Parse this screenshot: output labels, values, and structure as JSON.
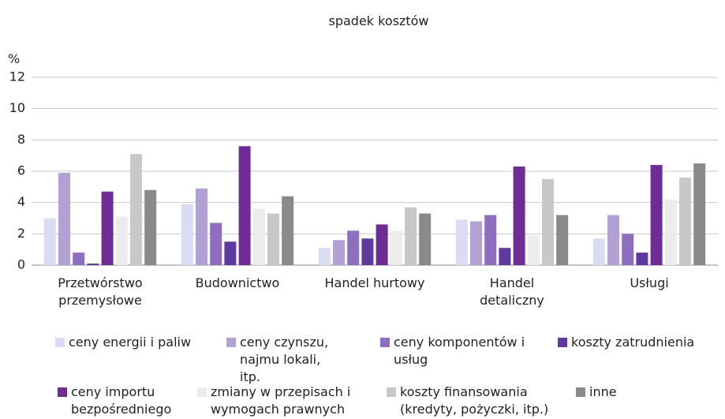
{
  "chart_data": {
    "type": "bar",
    "title": "spadek kosztów",
    "y_label": "%",
    "categories": [
      "Przetwórstwo przemysłowe",
      "Budownictwo",
      "Handel hurtowy",
      "Handel detaliczny",
      "Usługi"
    ],
    "series": [
      {
        "name": "ceny energii i paliw",
        "color": "#d9dcf2",
        "values": [
          3.0,
          3.9,
          1.1,
          2.9,
          1.7
        ]
      },
      {
        "name": "ceny czynszu, najmu lokali, itp.",
        "color": "#b3a0d4",
        "values": [
          5.9,
          4.9,
          1.6,
          2.8,
          3.2
        ]
      },
      {
        "name": "ceny komponentów i usług",
        "color": "#8e6fbf",
        "values": [
          0.8,
          2.7,
          2.2,
          3.2,
          2.0
        ]
      },
      {
        "name": "koszty zatrudnienia",
        "color": "#5e3aa0",
        "values": [
          0.1,
          1.5,
          1.7,
          1.1,
          0.8
        ]
      },
      {
        "name": "ceny importu bezpośredniego",
        "color": "#702c96",
        "values": [
          4.7,
          7.6,
          2.6,
          6.3,
          6.4
        ]
      },
      {
        "name": "zmiany w przepisach i wymogach prawnych",
        "color": "#ececec",
        "values": [
          3.1,
          3.6,
          2.2,
          1.9,
          4.2
        ]
      },
      {
        "name": "koszty finansowania (kredyty, pożyczki, itp.)",
        "color": "#c8c8c8",
        "values": [
          7.1,
          3.3,
          3.7,
          5.5,
          5.6
        ]
      },
      {
        "name": "inne",
        "color": "#8a8a8a",
        "values": [
          4.8,
          4.4,
          3.3,
          3.2,
          6.5
        ]
      }
    ],
    "ylim": [
      0,
      12
    ],
    "yticks": [
      0,
      2,
      4,
      6,
      8,
      10,
      12
    ],
    "grid": true
  }
}
